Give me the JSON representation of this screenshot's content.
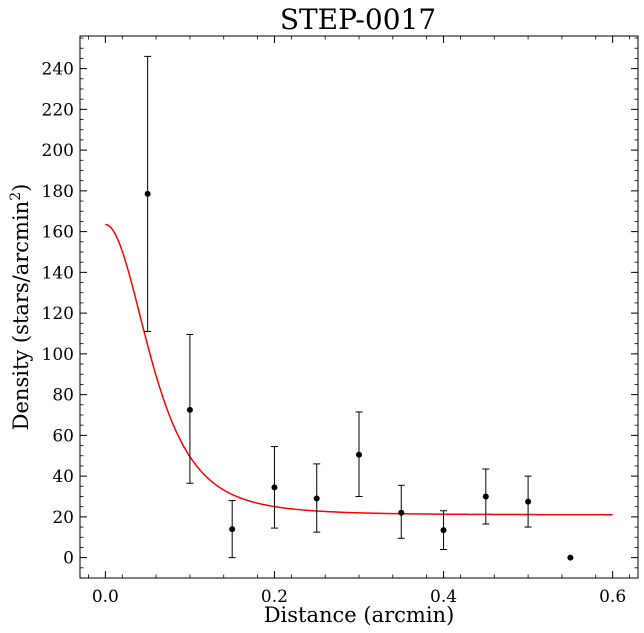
{
  "chart_data": {
    "type": "scatter",
    "title": "STEP-0017",
    "xlabel": "Distance (arcmin)",
    "ylabel_main": "Density (stars/arcmin",
    "ylabel_sup": "2",
    "ylabel_end": ")",
    "xlim": [
      -0.03,
      0.63
    ],
    "ylim": [
      -10,
      256
    ],
    "xticks": [
      0.0,
      0.2,
      0.4,
      0.6
    ],
    "xtick_labels": [
      "0.0",
      "0.2",
      "0.4",
      "0.6"
    ],
    "yticks": [
      0,
      20,
      40,
      60,
      80,
      100,
      120,
      140,
      160,
      180,
      200,
      220,
      240
    ],
    "ytick_labels": [
      "0",
      "20",
      "40",
      "60",
      "80",
      "100",
      "120",
      "140",
      "160",
      "180",
      "200",
      "220",
      "240"
    ],
    "grid": false,
    "points": [
      {
        "x": 0.05,
        "y": 178.5,
        "ylo": 111,
        "yhi": 246
      },
      {
        "x": 0.1,
        "y": 72.5,
        "ylo": 36.5,
        "yhi": 109.5
      },
      {
        "x": 0.15,
        "y": 14,
        "ylo": 0,
        "yhi": 28
      },
      {
        "x": 0.2,
        "y": 34.5,
        "ylo": 14.5,
        "yhi": 54.5
      },
      {
        "x": 0.25,
        "y": 29,
        "ylo": 12.5,
        "yhi": 46
      },
      {
        "x": 0.3,
        "y": 50.5,
        "ylo": 30,
        "yhi": 71.5
      },
      {
        "x": 0.35,
        "y": 22,
        "ylo": 9.5,
        "yhi": 35.5
      },
      {
        "x": 0.4,
        "y": 13.5,
        "ylo": 4,
        "yhi": 23
      },
      {
        "x": 0.45,
        "y": 30,
        "ylo": 16.5,
        "yhi": 43.5
      },
      {
        "x": 0.5,
        "y": 27.5,
        "ylo": 15,
        "yhi": 40
      },
      {
        "x": 0.55,
        "y": 0
      }
    ],
    "fit": {
      "type": "king-like",
      "background": 21,
      "central": 142.5,
      "core_radius": 0.09,
      "x_range": [
        0.0,
        0.6
      ],
      "color": "#ff0000"
    },
    "marker_color": "#000000"
  }
}
